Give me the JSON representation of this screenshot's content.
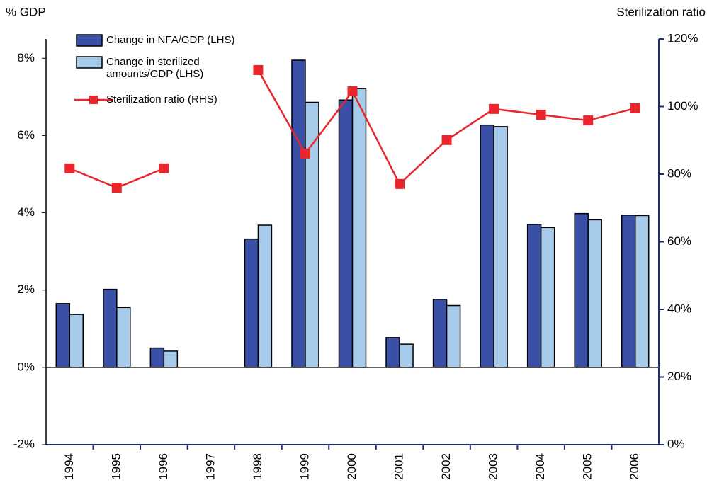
{
  "chart_data": {
    "type": "bar",
    "y_label": "% GDP",
    "y2_label": "Sterilization ratio",
    "categories": [
      "1994",
      "1995",
      "1996",
      "1997",
      "1998",
      "1999",
      "2000",
      "2001",
      "2002",
      "2003",
      "2004",
      "2005",
      "2006"
    ],
    "series": [
      {
        "name": "Change in NFA/GDP (LHS)",
        "color": "#3a4fa6",
        "values": [
          1.65,
          2.02,
          0.5,
          null,
          3.32,
          7.95,
          6.92,
          0.77,
          1.76,
          6.27,
          3.7,
          3.98,
          3.94
        ]
      },
      {
        "name": "Change in sterilized amounts/GDP (LHS)",
        "color": "#a6cbeb",
        "values": [
          1.37,
          1.55,
          0.42,
          null,
          3.68,
          6.86,
          7.22,
          0.6,
          1.6,
          6.23,
          3.62,
          3.82,
          3.93
        ]
      },
      {
        "name": "Sterilization ratio (RHS)",
        "type": "line",
        "axis": "y2",
        "color": "#e8262b",
        "values": [
          81.7,
          76.0,
          81.7,
          null,
          110.8,
          86.1,
          104.5,
          77.1,
          90.1,
          99.3,
          97.6,
          95.9,
          99.5
        ]
      }
    ],
    "ylim": [
      -2,
      8.5
    ],
    "yticks": [
      {
        "value": -2,
        "label": "-2%"
      },
      {
        "value": 0,
        "label": "0%"
      },
      {
        "value": 2,
        "label": "2%"
      },
      {
        "value": 4,
        "label": "4%"
      },
      {
        "value": 6,
        "label": "6%"
      },
      {
        "value": 8,
        "label": "8%"
      }
    ],
    "y2lim": [
      0,
      120
    ],
    "y2ticks": [
      {
        "value": 0,
        "label": "0%"
      },
      {
        "value": 20,
        "label": "20%"
      },
      {
        "value": 40,
        "label": "40%"
      },
      {
        "value": 60,
        "label": "60%"
      },
      {
        "value": 80,
        "label": "80%"
      },
      {
        "value": 100,
        "label": "100%"
      },
      {
        "value": 120,
        "label": "120%"
      }
    ]
  }
}
